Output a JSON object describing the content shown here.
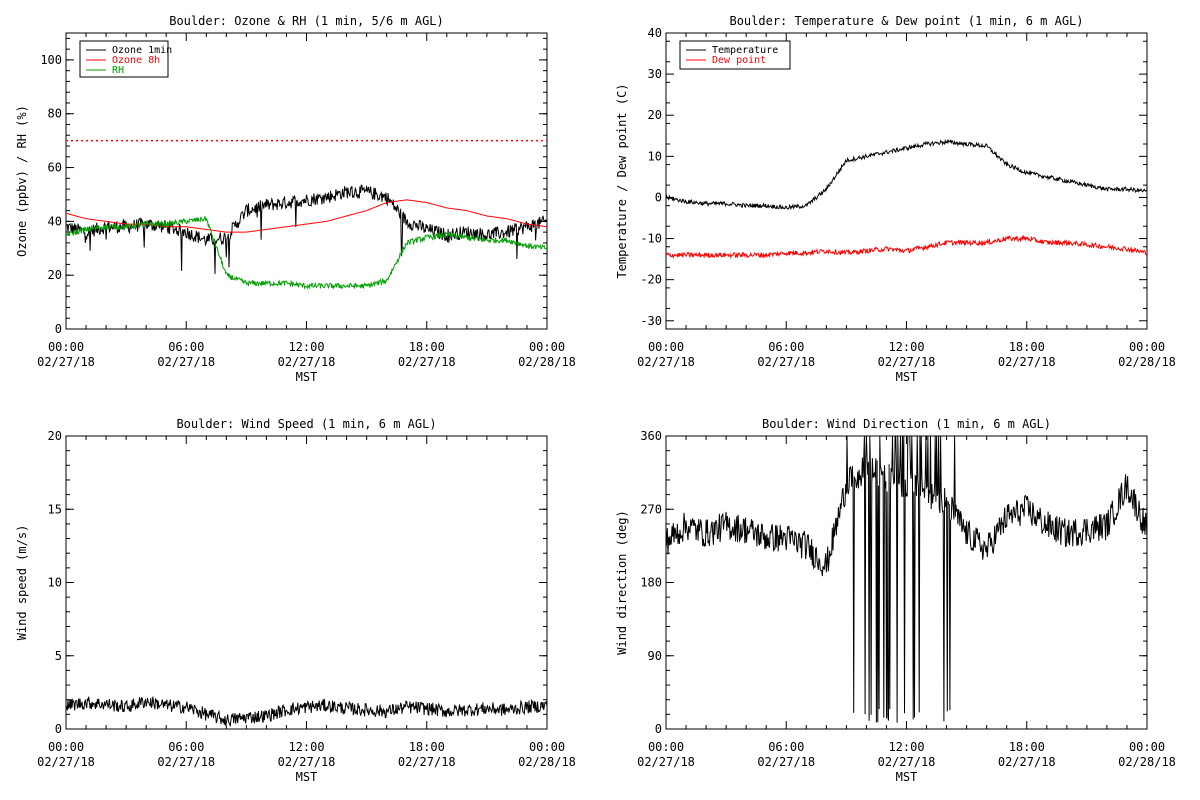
{
  "chart_data": [
    {
      "type": "line",
      "title": "Boulder: Ozone & RH (1 min, 5/6 m AGL)",
      "xlabel": "MST",
      "ylabel": "Ozone (ppbv) / RH (%)",
      "xlim": [
        "02/27/18 00:00",
        "02/28/18 00:00"
      ],
      "ylim": [
        0,
        110
      ],
      "x_ticks": [
        {
          "time": "00:00",
          "date": "02/27/18"
        },
        {
          "time": "06:00",
          "date": "02/27/18"
        },
        {
          "time": "12:00",
          "date": "02/27/18"
        },
        {
          "time": "18:00",
          "date": "02/27/18"
        },
        {
          "time": "00:00",
          "date": "02/28/18"
        }
      ],
      "y_ticks": [
        "0",
        "20",
        "40",
        "60",
        "80",
        "100"
      ],
      "legend_position": "top-left",
      "reference_line": {
        "y": 70,
        "color": "#ff0000",
        "style": "dotted"
      },
      "x_hours": [
        0,
        1,
        2,
        3,
        4,
        5,
        6,
        7,
        8,
        9,
        10,
        11,
        12,
        13,
        14,
        15,
        16,
        17,
        18,
        19,
        20,
        21,
        22,
        23,
        24
      ],
      "series": [
        {
          "name": "Ozone 1min",
          "color": "#000000",
          "values": [
            38,
            36,
            38,
            38,
            39,
            38,
            36,
            33,
            34,
            44,
            46,
            47,
            48,
            49,
            51,
            51,
            49,
            40,
            37,
            35,
            36,
            35,
            36,
            38,
            40
          ]
        },
        {
          "name": "Ozone 8h",
          "color": "#ff0000",
          "values": [
            43,
            41,
            40,
            39,
            39,
            38,
            38,
            37,
            36,
            36,
            37,
            38,
            39,
            40,
            42,
            44,
            47,
            48,
            47,
            45,
            44,
            42,
            41,
            39,
            38
          ]
        },
        {
          "name": "RH",
          "color": "#00a000",
          "values": [
            35,
            37,
            38,
            38,
            39,
            39,
            40,
            41,
            20,
            17,
            17,
            17,
            16,
            16,
            16,
            16,
            18,
            32,
            34,
            35,
            34,
            33,
            33,
            31,
            30
          ]
        }
      ]
    },
    {
      "type": "line",
      "title": "Boulder: Temperature & Dew point (1 min, 6 m AGL)",
      "xlabel": "MST",
      "ylabel": "Temperature / Dew point (C)",
      "xlim": [
        "02/27/18 00:00",
        "02/28/18 00:00"
      ],
      "ylim": [
        -32,
        40
      ],
      "x_ticks": [
        {
          "time": "00:00",
          "date": "02/27/18"
        },
        {
          "time": "06:00",
          "date": "02/27/18"
        },
        {
          "time": "12:00",
          "date": "02/27/18"
        },
        {
          "time": "18:00",
          "date": "02/27/18"
        },
        {
          "time": "00:00",
          "date": "02/28/18"
        }
      ],
      "y_ticks": [
        "-30",
        "-20",
        "-10",
        "0",
        "10",
        "20",
        "30",
        "40"
      ],
      "legend_position": "top-left",
      "x_hours": [
        0,
        1,
        2,
        3,
        4,
        5,
        6,
        7,
        8,
        9,
        10,
        11,
        12,
        13,
        14,
        15,
        16,
        17,
        18,
        19,
        20,
        21,
        22,
        23,
        24
      ],
      "series": [
        {
          "name": "Temperature",
          "color": "#000000",
          "values": [
            0,
            -1,
            -1.5,
            -1.5,
            -2,
            -2,
            -2.5,
            -2,
            2,
            9,
            10,
            11,
            12,
            13,
            13.5,
            13,
            12.5,
            8,
            6,
            5,
            4,
            3,
            2,
            2,
            1.5
          ]
        },
        {
          "name": "Dew point",
          "color": "#ff0000",
          "values": [
            -14,
            -14,
            -14,
            -14,
            -14,
            -14,
            -13.5,
            -13.5,
            -13,
            -13.5,
            -13,
            -12.5,
            -13,
            -12,
            -11,
            -11,
            -11,
            -10,
            -10,
            -11,
            -11,
            -11.5,
            -12,
            -12.5,
            -13.5
          ]
        }
      ]
    },
    {
      "type": "line",
      "title": "Boulder: Wind Speed (1 min, 6 m AGL)",
      "xlabel": "MST",
      "ylabel": "Wind speed (m/s)",
      "xlim": [
        "02/27/18 00:00",
        "02/28/18 00:00"
      ],
      "ylim": [
        0,
        20
      ],
      "x_ticks": [
        {
          "time": "00:00",
          "date": "02/27/18"
        },
        {
          "time": "06:00",
          "date": "02/27/18"
        },
        {
          "time": "12:00",
          "date": "02/27/18"
        },
        {
          "time": "18:00",
          "date": "02/27/18"
        },
        {
          "time": "00:00",
          "date": "02/28/18"
        }
      ],
      "y_ticks": [
        "0",
        "5",
        "10",
        "15",
        "20"
      ],
      "x_hours": [
        0,
        1,
        2,
        3,
        4,
        5,
        6,
        7,
        8,
        9,
        10,
        11,
        12,
        13,
        14,
        15,
        16,
        17,
        18,
        19,
        20,
        21,
        22,
        23,
        24
      ],
      "series": [
        {
          "color": "#000000",
          "values": [
            1.6,
            1.8,
            1.7,
            1.5,
            1.9,
            1.6,
            1.5,
            1.0,
            0.6,
            0.8,
            0.9,
            1.3,
            1.5,
            1.6,
            1.4,
            1.3,
            1.2,
            1.5,
            1.4,
            1.2,
            1.3,
            1.4,
            1.3,
            1.5,
            1.6
          ]
        }
      ]
    },
    {
      "type": "line",
      "title": "Boulder: Wind Direction (1 min, 6 m AGL)",
      "xlabel": "MST",
      "ylabel": "Wind direction (deg)",
      "xlim": [
        "02/27/18 00:00",
        "02/28/18 00:00"
      ],
      "ylim": [
        0,
        360
      ],
      "x_ticks": [
        {
          "time": "00:00",
          "date": "02/27/18"
        },
        {
          "time": "06:00",
          "date": "02/27/18"
        },
        {
          "time": "12:00",
          "date": "02/27/18"
        },
        {
          "time": "18:00",
          "date": "02/27/18"
        },
        {
          "time": "00:00",
          "date": "02/28/18"
        }
      ],
      "y_ticks": [
        "0",
        "90",
        "180",
        "270",
        "360"
      ],
      "x_hours": [
        0,
        1,
        2,
        3,
        4,
        5,
        6,
        7,
        8,
        9,
        10,
        11,
        12,
        13,
        14,
        15,
        16,
        17,
        18,
        19,
        20,
        21,
        22,
        23,
        24
      ],
      "series": [
        {
          "color": "#000000",
          "values": [
            230,
            250,
            240,
            250,
            245,
            235,
            235,
            225,
            200,
            300,
            320,
            310,
            300,
            290,
            280,
            240,
            220,
            260,
            270,
            250,
            240,
            245,
            250,
            300,
            245
          ]
        }
      ]
    }
  ]
}
